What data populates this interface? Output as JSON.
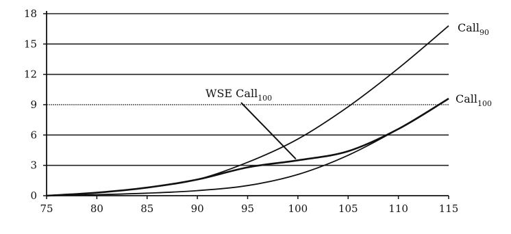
{
  "chart_data": {
    "type": "line",
    "title": "",
    "xlabel": "",
    "ylabel": "",
    "xlim": [
      75,
      115
    ],
    "ylim": [
      0,
      18
    ],
    "xticks": [
      "75",
      "80",
      "85",
      "90",
      "95",
      "100",
      "105",
      "110",
      "115"
    ],
    "yticks": [
      "0",
      "3",
      "6",
      "9",
      "12",
      "15",
      "18"
    ],
    "grid": "horizontal",
    "series": [
      {
        "name": "Call90",
        "label_main": "Call",
        "label_sub": "90",
        "x": [
          75,
          80,
          85,
          90,
          95,
          100,
          105,
          110,
          115
        ],
        "y": [
          0.0,
          0.3,
          0.8,
          1.6,
          3.3,
          5.6,
          8.8,
          12.6,
          16.8
        ]
      },
      {
        "name": "Call100",
        "label_main": "Call",
        "label_sub": "100",
        "x": [
          75,
          80,
          85,
          90,
          95,
          100,
          105,
          110,
          115
        ],
        "y": [
          0.0,
          0.1,
          0.25,
          0.5,
          1.0,
          2.1,
          4.0,
          6.6,
          9.6
        ]
      },
      {
        "name": "WSE Call100",
        "label_main": "WSE Call",
        "label_sub": "100",
        "x": [
          75,
          80,
          85,
          90,
          95,
          100,
          105,
          110,
          115
        ],
        "y": [
          0.0,
          0.3,
          0.8,
          1.6,
          2.8,
          3.5,
          4.4,
          6.6,
          9.6
        ]
      }
    ],
    "annotations": [
      {
        "text_main": "WSE Call",
        "text_sub": "100",
        "points_to": {
          "x": 100,
          "y": 3.5
        }
      }
    ]
  }
}
